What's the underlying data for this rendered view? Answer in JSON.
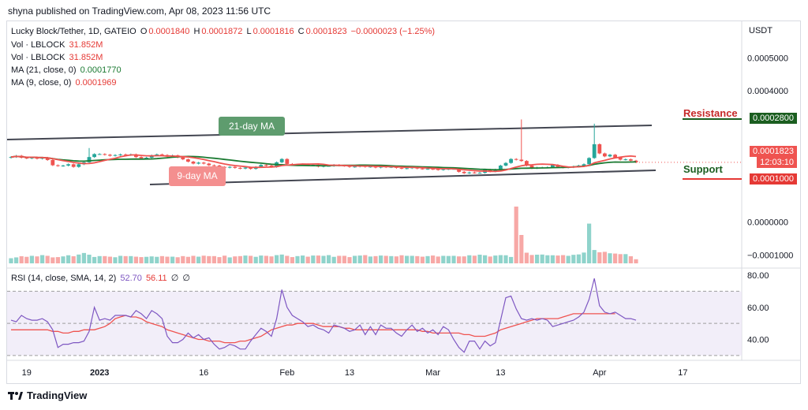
{
  "header": {
    "published": "shyna published on TradingView.com, Apr 08, 2023 11:56 UTC"
  },
  "legend": {
    "symbol": "Lucky Block/Tether, 1D, GATEIO",
    "o_label": "O",
    "o": "0.0001840",
    "h_label": "H",
    "h": "0.0001872",
    "l_label": "L",
    "l": "0.0001816",
    "c_label": "C",
    "c": "0.0001823",
    "change": "−0.0000023 (−1.25%)",
    "vol1": "Vol · LBLOCK",
    "vol1_value": "31.852M",
    "vol2": "Vol · LBLOCK",
    "vol2_value": "31.852M",
    "ma21": "MA (21, close, 0)",
    "ma21_value": "0.0001770",
    "ma9": "MA (9, close, 0)",
    "ma9_value": "0.0001969",
    "rsi": "RSI (14, close, SMA, 14, 2)",
    "rsi_value1": "52.70",
    "rsi_value2": "56.11",
    "rsi_na1": "∅",
    "rsi_na2": "∅"
  },
  "currency": "USDT",
  "annotations": {
    "ma21_label": "21-day MA",
    "ma9_label": "9-day MA",
    "resistance_label": "Resistance",
    "resistance_value": "0.0002800",
    "support_label": "Support",
    "support_value": "0.0001000",
    "last_price": "0.0001823",
    "countdown": "12:03:10"
  },
  "colors": {
    "up": "#26a69a",
    "down": "#ef5350",
    "ma9": "#ef5350",
    "ma21": "#1b7a32",
    "rsi": "#7e57c2",
    "resistance": "#1b5e20",
    "support": "#e53935",
    "trendline": "#434651"
  },
  "chart_data": [
    {
      "type": "candlestick",
      "x_tick_labels": [
        "19",
        "2023",
        "16",
        "Feb",
        "13",
        "Mar",
        "13",
        "Apr",
        "17"
      ],
      "y_tick_labels": [
        "0.0005000",
        "0.0004000",
        "0.0002800",
        "0.0001823",
        "0.0001000",
        "0.0000000",
        "−0.0001000"
      ],
      "ylim": [
        -0.00014,
        0.00058
      ],
      "close": [
        0.000198,
        0.000202,
        0.000196,
        0.000194,
        0.000197,
        0.000193,
        0.000196,
        0.000189,
        0.000173,
        0.000171,
        0.000172,
        0.000176,
        0.000168,
        0.000176,
        0.000182,
        0.000198,
        0.000207,
        0.000207,
        0.000205,
        0.000202,
        0.000204,
        0.000206,
        0.000204,
        0.000206,
        0.000198,
        0.000194,
        0.000196,
        0.000203,
        0.000206,
        0.000204,
        0.000199,
        0.000203,
        0.000197,
        0.000191,
        0.000184,
        0.000178,
        0.000181,
        0.000178,
        0.000173,
        0.000172,
        0.000168,
        0.000166,
        0.000168,
        0.000165,
        0.000163,
        0.000166,
        0.000162,
        0.000168,
        0.000174,
        0.000172,
        0.000168,
        0.000182,
        0.000192,
        0.000177,
        0.000175,
        0.000175,
        0.000176,
        0.000173,
        0.000174,
        0.000169,
        0.000171,
        0.000171,
        0.000174,
        0.000172,
        0.000171,
        0.000168,
        0.000169,
        0.000171,
        0.000168,
        0.000169,
        0.000166,
        0.000171,
        0.000167,
        0.000168,
        0.000165,
        0.000163,
        0.000164,
        0.000168,
        0.000163,
        0.000162,
        0.000162,
        0.000161,
        0.000159,
        0.000161,
        0.000162,
        0.000162,
        0.000153,
        0.000149,
        0.000151,
        0.00015,
        0.00015,
        0.00016,
        0.000154,
        0.00016,
        0.000172,
        0.00018,
        0.000192,
        0.00019,
        0.000186,
        0.000172,
        0.000164,
        0.000166,
        0.000166,
        0.000167,
        0.000174,
        0.000168,
        0.000166,
        0.000167,
        0.000169,
        0.000172,
        0.000176,
        0.000195,
        0.000237,
        0.000209,
        0.0002,
        0.000205,
        0.000196,
        0.00019,
        0.000191,
        0.000187,
        0.000182
      ],
      "volume": [
        0.36,
        0.42,
        0.5,
        0.46,
        0.53,
        0.49,
        0.58,
        0.53,
        0.42,
        0.44,
        0.49,
        0.57,
        0.5,
        0.62,
        0.73,
        0.61,
        0.45,
        0.51,
        0.51,
        0.47,
        0.43,
        0.53,
        0.51,
        0.51,
        0.47,
        0.44,
        0.46,
        0.49,
        0.46,
        0.51,
        0.47,
        0.47,
        0.43,
        0.51,
        0.46,
        0.53,
        0.47,
        0.54,
        0.51,
        0.51,
        0.44,
        0.54,
        0.42,
        0.49,
        0.51,
        0.55,
        0.53,
        0.46,
        0.55,
        0.53,
        0.49,
        0.58,
        0.62,
        0.53,
        0.44,
        0.51,
        0.55,
        0.47,
        0.55,
        0.55,
        0.53,
        0.58,
        0.46,
        0.53,
        0.53,
        0.44,
        0.53,
        0.55,
        0.58,
        0.48,
        0.51,
        0.55,
        0.53,
        0.51,
        0.49,
        0.57,
        0.53,
        0.53,
        0.51,
        0.47,
        0.51,
        0.55,
        0.48,
        0.53,
        0.52,
        0.53,
        0.49,
        0.49,
        0.57,
        0.54,
        0.61,
        0.57,
        0.48,
        0.55,
        0.58,
        0.57,
        0.45,
        4.0,
        2.0,
        0.75,
        0.59,
        0.61,
        0.62,
        0.57,
        0.57,
        0.55,
        0.58,
        0.53,
        0.6,
        0.63,
        0.76,
        2.8,
        0.94,
        0.78,
        0.81,
        0.71,
        0.69,
        0.65,
        0.65,
        0.5,
        0.29
      ],
      "volume_unit": "relative",
      "ma21_series_name": "MA (21, close, 0)",
      "ma9_series_name": "MA (9, close, 0)",
      "resistance_level": 0.00028,
      "support_level": 0.0001
    },
    {
      "type": "line",
      "series_name": "RSI (14, close, SMA, 14, 2)",
      "y_tick_labels": [
        "80.00",
        "60.00",
        "40.00"
      ],
      "ylim": [
        27,
        82
      ],
      "bands": [
        30,
        50,
        70
      ],
      "rsi": [
        52,
        51,
        55,
        53,
        52,
        52,
        53,
        51,
        46,
        35,
        37,
        37,
        38,
        38,
        39,
        45,
        60,
        52,
        53,
        52,
        55,
        55,
        55,
        54,
        58,
        56,
        53,
        58,
        56,
        53,
        42,
        38,
        38,
        40,
        44,
        41,
        43,
        40,
        41,
        37,
        34,
        35,
        37,
        36,
        34,
        34,
        39,
        43,
        47,
        45,
        42,
        53,
        71,
        60,
        55,
        53,
        51,
        48,
        49,
        47,
        46,
        44,
        49,
        48,
        47,
        45,
        46,
        49,
        43,
        48,
        43,
        49,
        47,
        47,
        44,
        42,
        46,
        49,
        45,
        47,
        44,
        46,
        43,
        48,
        46,
        40,
        35,
        32,
        39,
        39,
        34,
        39,
        36,
        38,
        52,
        66,
        67,
        59,
        53,
        52,
        53,
        52,
        53,
        52,
        48,
        49,
        50,
        51,
        52,
        54,
        57,
        65,
        78,
        61,
        57,
        56,
        57,
        55,
        53,
        53,
        52
      ],
      "rsi_ma": [
        46,
        46,
        46,
        46,
        46,
        46,
        46,
        46,
        45,
        45,
        44,
        44,
        45,
        45,
        46,
        46,
        46,
        47,
        48,
        50,
        53,
        54,
        55,
        54,
        54,
        53,
        51,
        50,
        49,
        48,
        46,
        45,
        44,
        43,
        42,
        41,
        40,
        40,
        39,
        39,
        39,
        38,
        38,
        38,
        39,
        39,
        40,
        41,
        42,
        44,
        46,
        47,
        48,
        49,
        49,
        50,
        50,
        50,
        50,
        49,
        48,
        48,
        48,
        48,
        47,
        47,
        46,
        46,
        46,
        46,
        46,
        46,
        46,
        46,
        46,
        46,
        46,
        46,
        46,
        45,
        45,
        44,
        44,
        44,
        44,
        44,
        44,
        43,
        43,
        42,
        42,
        42,
        43,
        44,
        46,
        47,
        48,
        49,
        50,
        51,
        52,
        53,
        53,
        53,
        53,
        53,
        54,
        55,
        56,
        56,
        56,
        56,
        56,
        56,
        56,
        56,
        56
      ],
      "last_rsi": "52.70",
      "last_rsi_ma": "56.11"
    }
  ]
}
